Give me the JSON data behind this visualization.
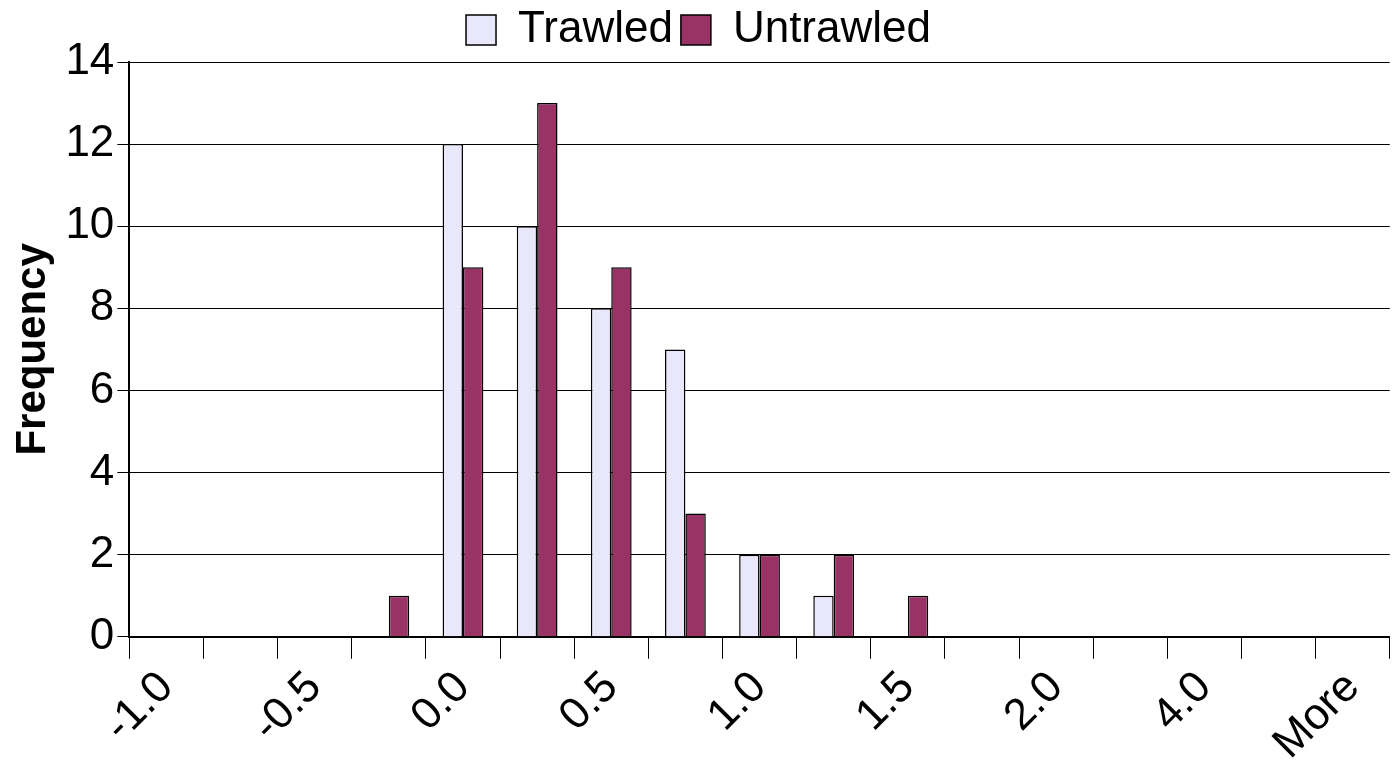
{
  "chart_data": {
    "type": "bar",
    "ylabel": "Frequency",
    "categories": [
      "-1.0",
      null,
      "-0.5",
      null,
      "0.0",
      null,
      "0.5",
      null,
      "1.0",
      null,
      "1.5",
      null,
      "2.0",
      null,
      "4.0",
      null,
      "More"
    ],
    "series": [
      {
        "name": "Trawled",
        "color": "#e8e8fa",
        "values": [
          0,
          0,
          0,
          0,
          12,
          10,
          8,
          7,
          2,
          1,
          0,
          0,
          0,
          0,
          0,
          0,
          0
        ]
      },
      {
        "name": "Untrawled",
        "color": "#993366",
        "values": [
          0,
          0,
          0,
          1,
          9,
          13,
          9,
          3,
          2,
          2,
          1,
          0,
          0,
          0,
          0,
          0,
          0
        ]
      }
    ],
    "ylim": [
      0,
      14
    ],
    "yticks": [
      0,
      2,
      4,
      6,
      8,
      10,
      12,
      14
    ],
    "grid": "y",
    "legend": "top"
  }
}
